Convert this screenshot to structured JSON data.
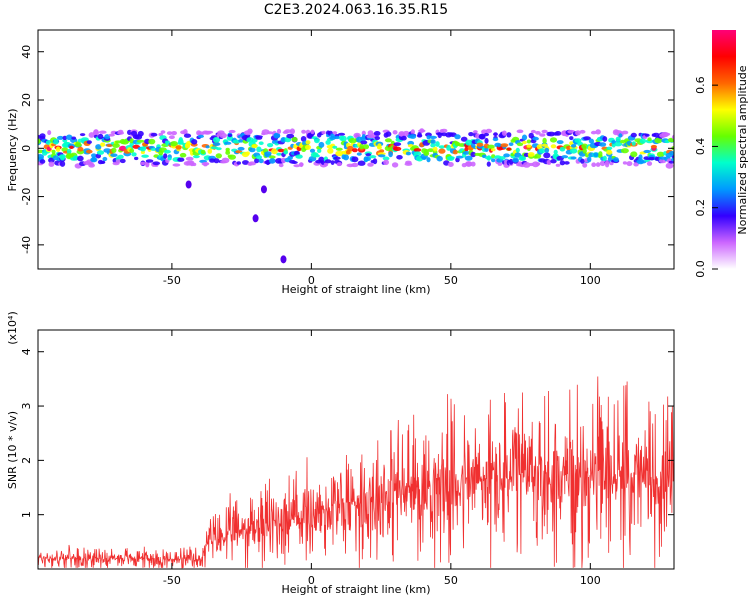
{
  "title": "C2E3.2024.063.16.35.R15",
  "chart_data": [
    {
      "type": "heatmap",
      "xlabel": "Height of straight line (km)",
      "ylabel": "Frequency (Hz)",
      "xlim": [
        -98,
        130
      ],
      "ylim": [
        -50,
        49
      ],
      "x_ticks": [
        -50,
        0,
        50,
        100
      ],
      "y_ticks": [
        -40,
        -20,
        0,
        20,
        40
      ],
      "band_center_hz": 0,
      "band_halfwidth_hz": 5,
      "description_points": [
        {
          "x": -20,
          "y": -29
        },
        {
          "x": -17,
          "y": -17
        },
        {
          "x": -44,
          "y": -15
        },
        {
          "x": -10,
          "y": -46
        }
      ],
      "colorbar": {
        "label": "Normalized spectral amplitude",
        "range": [
          0.0,
          0.78
        ],
        "ticks": [
          0.0,
          0.2,
          0.4,
          0.6
        ],
        "tick_labels": [
          "0.0",
          "0.2",
          "0.4",
          "0.6"
        ],
        "colors": [
          "#ffffff",
          "#cc66ff",
          "#3300ff",
          "#0099ff",
          "#00ffcc",
          "#66ff00",
          "#ffff00",
          "#ff6600",
          "#ff0000",
          "#ff0077"
        ]
      }
    },
    {
      "type": "line",
      "xlabel": "Height of straight line (km)",
      "ylabel": "SNR (10 * v/v)",
      "y_scale_label": "(x10⁴)",
      "xlim": [
        -98,
        130
      ],
      "ylim": [
        0,
        4.4
      ],
      "x_ticks": [
        -50,
        0,
        50,
        100
      ],
      "y_ticks": [
        1,
        2,
        3,
        4
      ],
      "series_color": "#f03030",
      "envelope": [
        {
          "x": -98,
          "base": 0.2,
          "amp": 0.25
        },
        {
          "x": -60,
          "base": 0.2,
          "amp": 0.25
        },
        {
          "x": -40,
          "base": 0.15,
          "amp": 0.3
        },
        {
          "x": -37,
          "base": 0.5,
          "amp": 0.6
        },
        {
          "x": -20,
          "base": 0.8,
          "amp": 1.0
        },
        {
          "x": 0,
          "base": 1.0,
          "amp": 1.2
        },
        {
          "x": 25,
          "base": 1.4,
          "amp": 1.6
        },
        {
          "x": 50,
          "base": 1.6,
          "amp": 1.8
        },
        {
          "x": 80,
          "base": 1.7,
          "amp": 2.0
        },
        {
          "x": 110,
          "base": 1.7,
          "amp": 2.0
        },
        {
          "x": 130,
          "base": 1.6,
          "amp": 1.8
        }
      ]
    }
  ]
}
